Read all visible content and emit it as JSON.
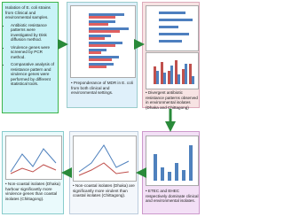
{
  "steps": [
    {
      "title": "Isolation of E. coli strains from Clinical and environmental samples.",
      "bullets": [
        "Antibiotic resistance patterns were investigated by Disk diffusion method.",
        "Virulence genes were screened by PCR method.",
        "Comparative analysis of resistance pattern and virulence genes were performed by different statistical tools."
      ]
    },
    {
      "text": "Preponderance of MDR in E. coli from both clinical and environmental settings."
    },
    {
      "text": "Divergent antibiotic resistance patterns observed in environmental isolates (Dhaka and Chittagong)"
    },
    {
      "text": "ETEC and EHEC respectively dominate clinical and environmental isolates."
    },
    {
      "text": "Non-coastal isolates (Dhaka) are significantly more virulent than coastal isolates (Chittagong)."
    },
    {
      "text": "Non-coastal isolates (Dhaka) harbour significantly more virulence genes than coastal isolates (Chittagong)."
    }
  ]
}
